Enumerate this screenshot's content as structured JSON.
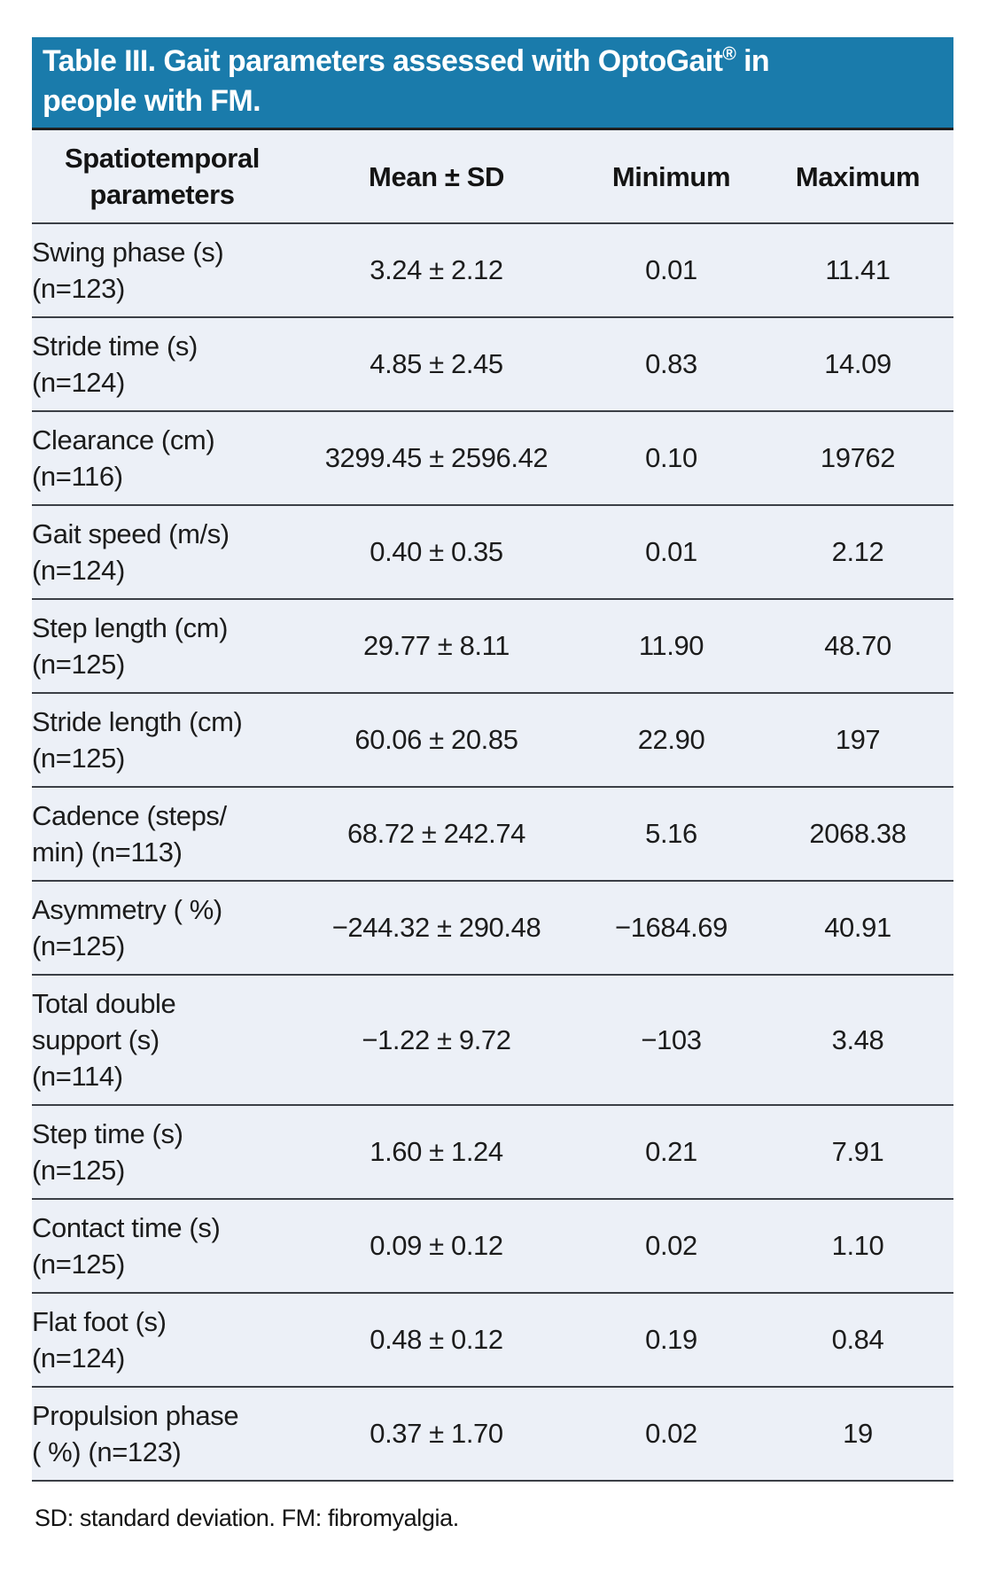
{
  "table": {
    "title": {
      "text_before_reg": "Table III. Gait parameters assessed with OptoGait",
      "reg_mark": "®",
      "text_after_reg": " in",
      "line2": "people with FM."
    },
    "columns": [
      {
        "label": "Spatiotemporal\nparameters"
      },
      {
        "label": "Mean ± SD"
      },
      {
        "label": "Minimum"
      },
      {
        "label": "Maximum"
      }
    ],
    "rows": [
      {
        "label": "Swing phase (s)\n(n=123)",
        "mean_sd": "3.24 ± 2.12",
        "minimum": "0.01",
        "maximum": "11.41"
      },
      {
        "label": "Stride time (s)\n(n=124)",
        "mean_sd": "4.85 ± 2.45",
        "minimum": "0.83",
        "maximum": "14.09"
      },
      {
        "label": "Clearance (cm)\n(n=116)",
        "mean_sd": "3299.45 ± 2596.42",
        "minimum": "0.10",
        "maximum": "19762"
      },
      {
        "label": "Gait speed (m/s)\n(n=124)",
        "mean_sd": "0.40 ± 0.35",
        "minimum": "0.01",
        "maximum": "2.12"
      },
      {
        "label": "Step length (cm)\n(n=125)",
        "mean_sd": "29.77 ± 8.11",
        "minimum": "11.90",
        "maximum": "48.70"
      },
      {
        "label": "Stride length (cm)\n(n=125)",
        "mean_sd": "60.06 ± 20.85",
        "minimum": "22.90",
        "maximum": "197"
      },
      {
        "label": "Cadence (steps/\nmin) (n=113)",
        "mean_sd": "68.72 ± 242.74",
        "minimum": "5.16",
        "maximum": "2068.38"
      },
      {
        "label": "Asymmetry ( %)\n(n=125)",
        "mean_sd": "−244.32 ± 290.48",
        "minimum": "−1684.69",
        "maximum": "40.91"
      },
      {
        "label": "Total double\nsupport (s)\n(n=114)",
        "mean_sd": "−1.22 ± 9.72",
        "minimum": "−103",
        "maximum": "3.48"
      },
      {
        "label": "Step time (s)\n(n=125)",
        "mean_sd": "1.60 ± 1.24",
        "minimum": "0.21",
        "maximum": "7.91"
      },
      {
        "label": "Contact time (s)\n(n=125)",
        "mean_sd": "0.09 ± 0.12",
        "minimum": "0.02",
        "maximum": "1.10"
      },
      {
        "label": "Flat foot (s)\n(n=124)",
        "mean_sd": "0.48 ± 0.12",
        "minimum": "0.19",
        "maximum": "0.84"
      },
      {
        "label": "Propulsion phase\n( %) (n=123)",
        "mean_sd": "0.37 ± 1.70",
        "minimum": "0.02",
        "maximum": "19"
      }
    ],
    "footnote": "SD: standard deviation. FM: fibromyalgia.",
    "colors": {
      "title_band_bg": "#1A7BAB",
      "title_text": "#FFFFFF",
      "body_bg": "#ECF0F7",
      "rule": "#3B3F46",
      "text": "#1C1C1C"
    }
  }
}
